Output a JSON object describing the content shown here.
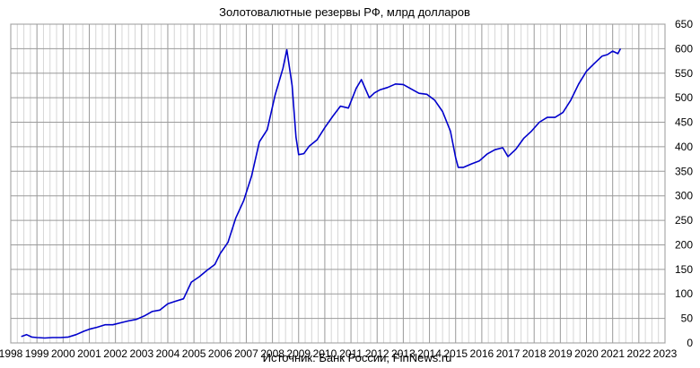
{
  "chart_data": {
    "type": "line",
    "title": "Золотовалютные резервы РФ, млрд долларов",
    "source": "Источник: Банк России, FinNews.ru",
    "xlabel": "",
    "ylabel": "",
    "xlim": [
      1998,
      2023
    ],
    "ylim": [
      0,
      650
    ],
    "x_ticks": [
      "1998",
      "1999",
      "2000",
      "2001",
      "2002",
      "2003",
      "2004",
      "2005",
      "2006",
      "2007",
      "2008",
      "2009",
      "2010",
      "2011",
      "2012",
      "2013",
      "2014",
      "2015",
      "2016",
      "2017",
      "2018",
      "2019",
      "2020",
      "2021",
      "2022",
      "2023"
    ],
    "y_ticks": [
      "0",
      "50",
      "100",
      "150",
      "200",
      "250",
      "300",
      "350",
      "400",
      "450",
      "500",
      "550",
      "600",
      "650"
    ],
    "grid": true,
    "y_axis_side": "right",
    "line_color": "#0000cc",
    "series": [
      {
        "x": [
          1998.4,
          1998.6,
          1998.8,
          1999.0,
          1999.3,
          1999.6,
          1999.9,
          2000.2,
          2000.5,
          2000.8,
          2001.0,
          2001.3,
          2001.6,
          2001.9,
          2002.2,
          2002.5,
          2002.8,
          2003.1,
          2003.4,
          2003.7,
          2004.0,
          2004.3,
          2004.6,
          2004.9,
          2005.2,
          2005.5,
          2005.8,
          2006.0,
          2006.3,
          2006.6,
          2006.9,
          2007.2,
          2007.5,
          2007.8,
          2008.1,
          2008.4,
          2008.55,
          2008.75,
          2008.9,
          2009.0,
          2009.2,
          2009.4,
          2009.7,
          2010.0,
          2010.3,
          2010.6,
          2010.9,
          2011.2,
          2011.4,
          2011.7,
          2011.9,
          2012.1,
          2012.4,
          2012.7,
          2013.0,
          2013.3,
          2013.6,
          2013.9,
          2014.2,
          2014.5,
          2014.8,
          2015.0,
          2015.1,
          2015.3,
          2015.6,
          2015.9,
          2016.2,
          2016.5,
          2016.8,
          2017.0,
          2017.3,
          2017.6,
          2017.9,
          2018.2,
          2018.5,
          2018.8,
          2019.1,
          2019.4,
          2019.7,
          2020.0,
          2020.3,
          2020.6,
          2020.8,
          2021.0,
          2021.2,
          2021.3
        ],
        "y": [
          13,
          17,
          12,
          11,
          10,
          11,
          11,
          12,
          17,
          24,
          28,
          32,
          37,
          37,
          41,
          45,
          48,
          55,
          64,
          67,
          80,
          85,
          90,
          124,
          135,
          148,
          160,
          182,
          205,
          255,
          290,
          340,
          410,
          435,
          505,
          560,
          598,
          525,
          420,
          384,
          386,
          401,
          414,
          439,
          462,
          483,
          479,
          519,
          537,
          500,
          510,
          516,
          521,
          528,
          527,
          518,
          509,
          507,
          495,
          472,
          432,
          378,
          358,
          358,
          365,
          371,
          385,
          394,
          398,
          380,
          395,
          417,
          432,
          450,
          460,
          460,
          470,
          495,
          528,
          554,
          570,
          585,
          588,
          595,
          590,
          600
        ]
      }
    ]
  }
}
